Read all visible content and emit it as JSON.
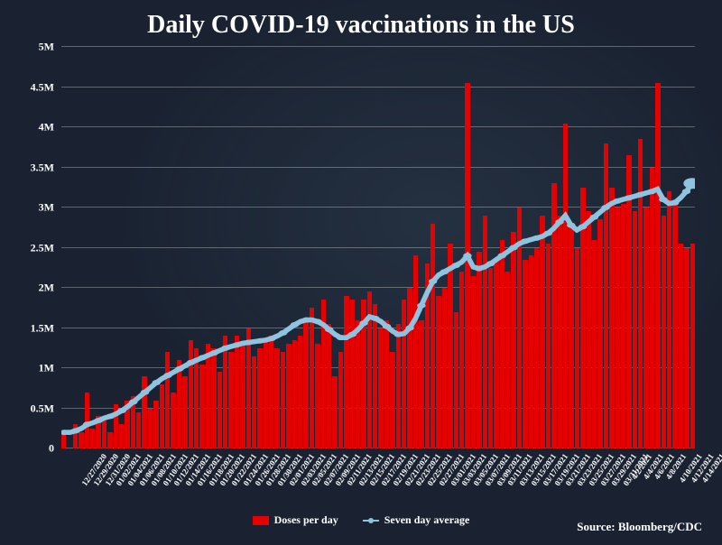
{
  "chart": {
    "type": "bar+line",
    "title": "Daily COVID-19 vaccinations in the US",
    "title_fontsize": 28,
    "background_color": "#1a2332",
    "grid_color": "rgba(255,255,255,0.3)",
    "text_color": "#ffffff",
    "source": "Source: Bloomberg/CDC",
    "y_axis": {
      "min": 0,
      "max": 5000000,
      "tick_step": 500000,
      "tick_labels": [
        "0",
        "0.5M",
        "1M",
        "1.5M",
        "2M",
        "2.5M",
        "3M",
        "3.5M",
        "4M",
        "4.5M",
        "5M"
      ],
      "label_fontsize": 12
    },
    "x_axis": {
      "labels": [
        "12/27/2020",
        "12/29/2020",
        "12/31/2020",
        "01/02/2021",
        "01/04/2021",
        "01/06/2021",
        "01/08/2021",
        "01/10/2021",
        "01/12/2021",
        "01/14/2021",
        "01/16/2021",
        "01/18/2021",
        "01/20/2021",
        "01/22/2021",
        "01/24/2021",
        "01/26/2021",
        "01/28/2021",
        "01/30/2021",
        "02/01/2021",
        "02/03/2021",
        "02/05/2021",
        "02/07/2021",
        "02/09/2021",
        "02/11/2021",
        "02/13/2021",
        "02/15/2021",
        "02/17/2021",
        "02/19/2021",
        "02/21/2021",
        "02/23/2021",
        "02/25/2021",
        "02/27/2021",
        "03/01/2021",
        "03/03/2021",
        "03/05/2021",
        "03/07/2021",
        "03/09/2021",
        "03/11/2021",
        "03/13/2021",
        "03/15/2021",
        "03/17/2021",
        "03/19/2021",
        "03/21/2021",
        "03/23/2021",
        "03/25/2021",
        "03/27/2021",
        "03/29/2021",
        "03/31/2021",
        "4/2/2021",
        "4/4/2021",
        "4/6/2021",
        "4/8/2021",
        "4/10/2021",
        "4/12/2021",
        "4/14/2021"
      ],
      "label_fontsize": 9,
      "rotation": -55
    },
    "series": {
      "bars": {
        "name": "Doses per day",
        "color": "#e60000",
        "values": [
          200000,
          0,
          300000,
          200000,
          700000,
          250000,
          400000,
          350000,
          200000,
          550000,
          300000,
          600000,
          650000,
          450000,
          900000,
          500000,
          600000,
          800000,
          1200000,
          700000,
          1100000,
          900000,
          1350000,
          1250000,
          1050000,
          1300000,
          1250000,
          950000,
          1400000,
          1200000,
          1400000,
          1300000,
          1500000,
          1150000,
          1250000,
          1350000,
          1400000,
          1250000,
          1200000,
          1300000,
          1350000,
          1400000,
          1600000,
          1750000,
          1300000,
          1850000,
          1550000,
          900000,
          1200000,
          1900000,
          1850000,
          1600000,
          1850000,
          1950000,
          1800000,
          1500000,
          1600000,
          1200000,
          1550000,
          1850000,
          2000000,
          2400000,
          1600000,
          2300000,
          2800000,
          1900000,
          2000000,
          2550000,
          1700000,
          2200000,
          4550000,
          2150000,
          2450000,
          2900000,
          2250000,
          2350000,
          2600000,
          2200000,
          2700000,
          3000000,
          2350000,
          2400000,
          2500000,
          2900000,
          2550000,
          3300000,
          2900000,
          4050000,
          2750000,
          2500000,
          3250000,
          2950000,
          2600000,
          2850000,
          3800000,
          3250000,
          3000000,
          3050000,
          3650000,
          2950000,
          3850000,
          3000000,
          3500000,
          4550000,
          2900000,
          3200000,
          3100000,
          2550000,
          2500000,
          2550000
        ]
      },
      "line": {
        "name": "Seven day average",
        "color": "#8fc4e0",
        "stroke_width": 2.5,
        "marker_size": 3,
        "values": [
          200000,
          200000,
          220000,
          250000,
          300000,
          320000,
          350000,
          380000,
          400000,
          430000,
          470000,
          520000,
          580000,
          640000,
          700000,
          760000,
          820000,
          870000,
          910000,
          950000,
          990000,
          1030000,
          1070000,
          1100000,
          1130000,
          1160000,
          1190000,
          1220000,
          1250000,
          1270000,
          1290000,
          1310000,
          1320000,
          1330000,
          1340000,
          1350000,
          1370000,
          1400000,
          1440000,
          1490000,
          1540000,
          1580000,
          1600000,
          1600000,
          1580000,
          1540000,
          1480000,
          1420000,
          1380000,
          1380000,
          1420000,
          1480000,
          1560000,
          1640000,
          1620000,
          1580000,
          1520000,
          1460000,
          1420000,
          1430000,
          1500000,
          1620000,
          1780000,
          1940000,
          2080000,
          2160000,
          2200000,
          2240000,
          2280000,
          2320000,
          2400000,
          2260000,
          2240000,
          2260000,
          2300000,
          2350000,
          2400000,
          2450000,
          2500000,
          2550000,
          2580000,
          2600000,
          2620000,
          2640000,
          2680000,
          2740000,
          2820000,
          2900000,
          2780000,
          2720000,
          2760000,
          2820000,
          2880000,
          2940000,
          3000000,
          3050000,
          3080000,
          3100000,
          3120000,
          3140000,
          3160000,
          3180000,
          3200000,
          3230000,
          3100000,
          3050000,
          3060000,
          3120000,
          3200000,
          3300000
        ]
      }
    },
    "legend": {
      "items": [
        {
          "label": "Doses per day",
          "type": "bar",
          "color": "#e60000"
        },
        {
          "label": "Seven day average",
          "type": "line",
          "color": "#8fc4e0"
        }
      ],
      "fontsize": 12
    }
  }
}
